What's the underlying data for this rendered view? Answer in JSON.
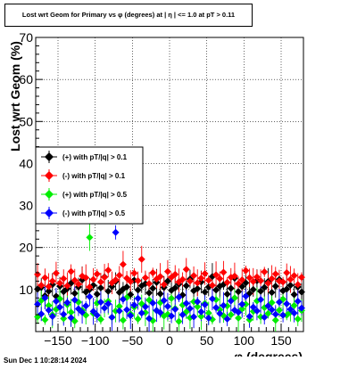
{
  "header": {
    "title": "Lost wrt Geom for Primary vs φ (degrees) at | η | <= 1.0 at pT > 0.11"
  },
  "footer": {
    "timestamp": "Sun Dec  1 10:28:14 2024"
  },
  "chart_data": {
    "type": "scatter",
    "title": "Lost wrt Geom for Primary vs φ (degrees) at | η | <= 1.0 at pT > 0.11",
    "xlabel": "φ (degrees)",
    "ylabel": "Lost wrt Geom (%)",
    "xlim": [
      -180,
      180
    ],
    "ylim": [
      0,
      70
    ],
    "xticks": [
      -150,
      -100,
      -50,
      0,
      50,
      100,
      150
    ],
    "xtick_labels": [
      "−150",
      "−100",
      "−50",
      "0",
      "50",
      "100",
      "150"
    ],
    "yticks": [
      10,
      20,
      30,
      40,
      50,
      60,
      70
    ],
    "grid": true,
    "legend_position": "left-middle",
    "bins": 72,
    "series": [
      {
        "name": "(+) with pT/|q| > 0.1",
        "color": "#000000",
        "values": [
          10.1,
          10.5,
          8.5,
          9.6,
          11.2,
          8.4,
          10.8,
          9.5,
          10.2,
          11.5,
          9.1,
          10.6,
          12.3,
          9.4,
          10.0,
          11.0,
          8.9,
          10.4,
          13.0,
          9.6,
          10.7,
          11.9,
          9.3,
          10.1,
          10.6,
          8.8,
          12.2,
          9.9,
          10.9,
          11.4,
          9.2,
          10.3,
          11.7,
          9.0,
          10.5,
          12.0,
          9.8,
          10.4,
          11.3,
          8.7,
          10.9,
          12.5,
          9.7,
          10.2,
          11.8,
          9.4,
          10.6,
          13.1,
          9.9,
          10.8,
          11.2,
          8.9,
          10.3,
          12.7,
          9.5,
          10.7,
          11.6,
          9.1,
          10.0,
          12.1,
          9.6,
          10.5,
          11.9,
          9.3,
          10.8,
          12.4,
          9.7,
          10.1,
          11.0,
          8.8,
          10.6,
          9.4
        ]
      },
      {
        "name": "(-) with pT/|q| > 0.1",
        "color": "#ff0000",
        "values": [
          13.6,
          11.0,
          12.8,
          10.7,
          12.0,
          13.9,
          11.5,
          12.6,
          10.9,
          14.3,
          12.2,
          11.3,
          13.2,
          12.8,
          10.6,
          12.4,
          13.7,
          11.8,
          12.9,
          14.6,
          11.6,
          12.3,
          13.4,
          16.0,
          12.7,
          11.9,
          13.9,
          12.1,
          17.2,
          12.8,
          11.4,
          14.0,
          12.5,
          13.1,
          11.2,
          14.3,
          12.9,
          13.6,
          11.8,
          12.4,
          14.8,
          12.0,
          13.3,
          11.6,
          12.7,
          13.8,
          12.2,
          11.0,
          13.5,
          12.6,
          14.1,
          11.7,
          12.9,
          13.2,
          11.4,
          12.3,
          14.5,
          12.8,
          11.9,
          13.0,
          12.1,
          14.2,
          11.5,
          12.6,
          13.7,
          12.0,
          11.8,
          14.0,
          12.4,
          13.3,
          11.2,
          12.9
        ]
      },
      {
        "name": "(+) with pT/|q| > 0.5",
        "color": "#00ee00",
        "values": [
          3.5,
          7.4,
          2.8,
          6.2,
          4.0,
          5.3,
          7.8,
          3.1,
          6.4,
          4.6,
          2.5,
          7.0,
          5.1,
          3.9,
          22.4,
          4.3,
          6.8,
          2.9,
          5.6,
          7.2,
          3.4,
          4.9,
          6.0,
          2.7,
          8.1,
          4.2,
          5.8,
          3.0,
          6.6,
          4.5,
          7.5,
          2.6,
          5.0,
          6.9,
          3.7,
          4.1,
          7.9,
          5.5,
          2.4,
          6.3,
          4.7,
          3.3,
          7.1,
          5.9,
          3.6,
          6.7,
          4.4,
          2.9,
          7.6,
          5.2,
          3.8,
          6.1,
          4.0,
          8.0,
          3.2,
          5.4,
          6.5,
          2.8,
          4.8,
          7.3,
          3.5,
          5.7,
          4.3,
          6.9,
          2.7,
          5.1,
          7.7,
          3.9,
          4.6,
          6.2,
          3.0,
          5.0
        ]
      },
      {
        "name": "(-) with pT/|q| > 0.5",
        "color": "#0000ff",
        "values": [
          6.5,
          4.2,
          8.0,
          5.1,
          3.6,
          7.2,
          5.8,
          4.1,
          6.9,
          3.3,
          7.5,
          5.4,
          4.6,
          6.1,
          8.3,
          4.8,
          3.9,
          7.0,
          5.6,
          6.6,
          3.4,
          23.6,
          4.9,
          7.7,
          5.2,
          3.8,
          6.3,
          7.9,
          4.4,
          5.9,
          3.1,
          6.8,
          5.0,
          4.5,
          7.4,
          6.0,
          3.7,
          5.3,
          8.2,
          4.0,
          6.7,
          5.5,
          3.5,
          7.1,
          4.7,
          6.4,
          3.2,
          7.8,
          5.7,
          4.3,
          6.2,
          3.0,
          7.3,
          5.1,
          4.6,
          6.5,
          8.4,
          3.6,
          5.8,
          4.9,
          7.6,
          3.4,
          6.1,
          5.2,
          4.1,
          7.0,
          3.9,
          6.6,
          5.3,
          4.4,
          7.2,
          5.6
        ]
      }
    ]
  }
}
